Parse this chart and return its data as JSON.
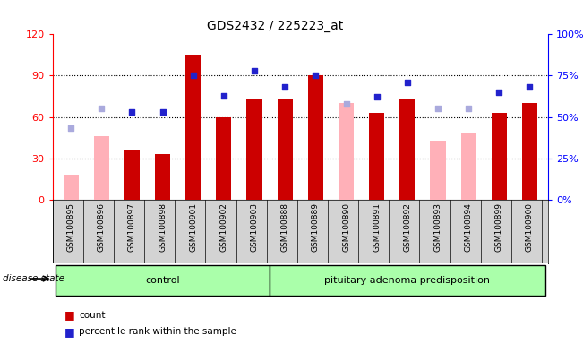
{
  "title": "GDS2432 / 225223_at",
  "samples": [
    "GSM100895",
    "GSM100896",
    "GSM100897",
    "GSM100898",
    "GSM100901",
    "GSM100902",
    "GSM100903",
    "GSM100888",
    "GSM100889",
    "GSM100890",
    "GSM100891",
    "GSM100892",
    "GSM100893",
    "GSM100894",
    "GSM100899",
    "GSM100900"
  ],
  "groups": [
    "control",
    "control",
    "control",
    "control",
    "control",
    "control",
    "control",
    "pituitary adenoma predisposition",
    "pituitary adenoma predisposition",
    "pituitary adenoma predisposition",
    "pituitary adenoma predisposition",
    "pituitary adenoma predisposition",
    "pituitary adenoma predisposition",
    "pituitary adenoma predisposition",
    "pituitary adenoma predisposition",
    "pituitary adenoma predisposition"
  ],
  "count_red": [
    null,
    null,
    36,
    33,
    105,
    60,
    73,
    73,
    90,
    null,
    63,
    73,
    null,
    null,
    63,
    70
  ],
  "count_pink": [
    18,
    46,
    null,
    null,
    null,
    null,
    null,
    null,
    null,
    70,
    null,
    null,
    43,
    48,
    null,
    null
  ],
  "pct_blue": [
    null,
    null,
    53,
    53,
    75,
    63,
    78,
    68,
    75,
    null,
    62,
    71,
    null,
    null,
    65,
    68
  ],
  "pct_lightblue": [
    43,
    55,
    null,
    null,
    null,
    null,
    null,
    null,
    null,
    58,
    null,
    null,
    55,
    55,
    null,
    null
  ],
  "left_ylim": [
    0,
    120
  ],
  "right_ylim": [
    0,
    100
  ],
  "left_yticks": [
    0,
    30,
    60,
    90,
    120
  ],
  "right_yticks": [
    0,
    25,
    50,
    75,
    100
  ],
  "right_yticklabels": [
    "0%",
    "25%",
    "50%",
    "75%",
    "100%"
  ],
  "bar_color_red": "#CC0000",
  "bar_color_pink": "#FFB0B8",
  "dot_color_blue": "#2222CC",
  "dot_color_lightblue": "#AAAADD",
  "control_color": "#AAFFAA",
  "adenoma_color": "#AAFFAA",
  "sample_bg": "#D3D3D3",
  "bar_width": 0.5
}
